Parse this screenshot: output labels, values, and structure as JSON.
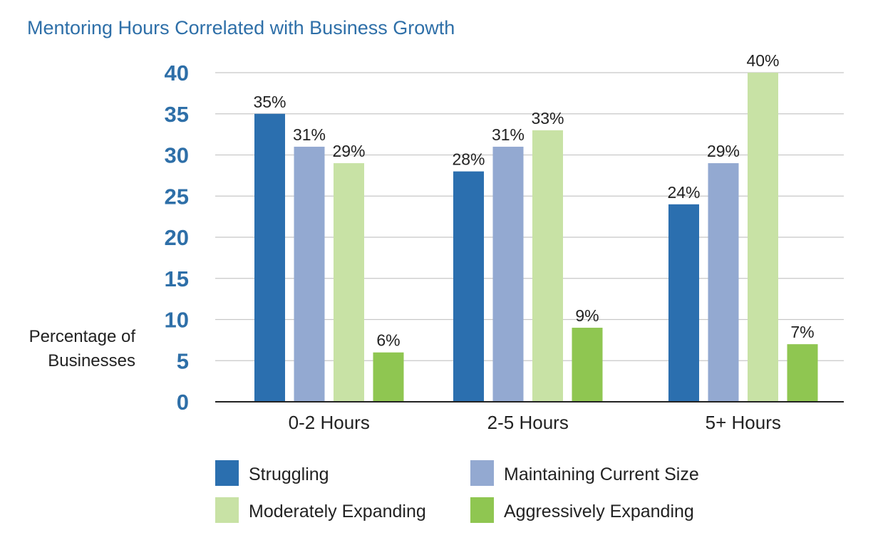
{
  "chart_data": {
    "type": "bar",
    "title": "Mentoring Hours Correlated with Business Growth",
    "ylabel_line1": "Percentage of",
    "ylabel_line2": "Businesses",
    "xlabel": "",
    "ylim": [
      0,
      40
    ],
    "yticks": [
      "0",
      "5",
      "10",
      "15",
      "20",
      "25",
      "30",
      "35",
      "40"
    ],
    "grid": true,
    "legend_position": "bottom",
    "categories": [
      "0-2 Hours",
      "2-5 Hours",
      "5+ Hours"
    ],
    "series": [
      {
        "name": "Struggling",
        "color": "#2b6faf",
        "values": [
          35,
          28,
          24
        ],
        "labels": [
          "35%",
          "28%",
          "24%"
        ]
      },
      {
        "name": "Maintaining Current Size",
        "color": "#93a9d1",
        "values": [
          31,
          31,
          29
        ],
        "labels": [
          "31%",
          "31%",
          "29%"
        ]
      },
      {
        "name": "Moderately Expanding",
        "color": "#c8e2a5",
        "values": [
          29,
          33,
          40
        ],
        "labels": [
          "29%",
          "33%",
          "40%"
        ]
      },
      {
        "name": "Aggressively Expanding",
        "color": "#8fc651",
        "values": [
          6,
          9,
          7
        ],
        "labels": [
          "6%",
          "9%",
          "7%"
        ]
      }
    ]
  }
}
